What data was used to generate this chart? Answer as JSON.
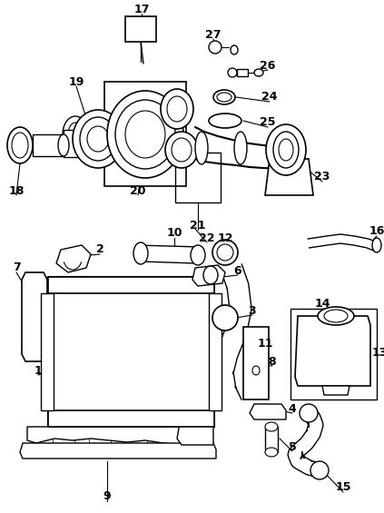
{
  "bg": "#ffffff",
  "lc": "#000000",
  "fig_w": 4.23,
  "fig_h": 5.65,
  "dpi": 100
}
